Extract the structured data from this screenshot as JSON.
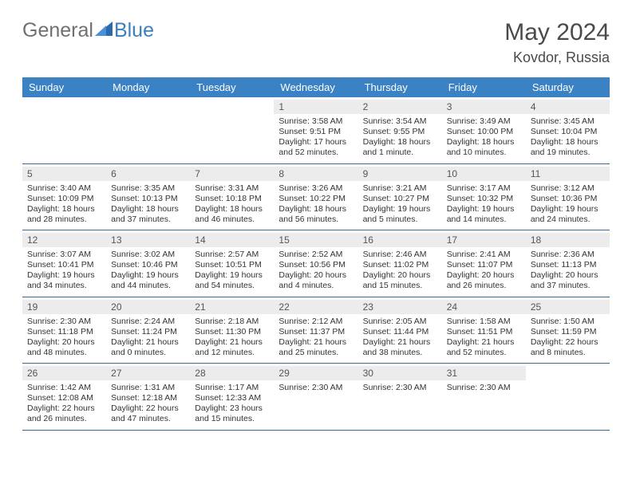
{
  "logo": {
    "text1": "General",
    "text2": "Blue"
  },
  "title": "May 2024",
  "location": "Kovdor, Russia",
  "accent_color": "#3a82c4",
  "daynum_bg": "#ececec",
  "border_color": "#3a6a9a",
  "text_color": "#333333",
  "header_text_color": "#ffffff",
  "page_bg": "#ffffff",
  "day_headers": [
    "Sunday",
    "Monday",
    "Tuesday",
    "Wednesday",
    "Thursday",
    "Friday",
    "Saturday"
  ],
  "weeks": [
    [
      null,
      null,
      null,
      {
        "n": "1",
        "sunrise": "3:58 AM",
        "sunset": "9:51 PM",
        "daylight": "17 hours and 52 minutes."
      },
      {
        "n": "2",
        "sunrise": "3:54 AM",
        "sunset": "9:55 PM",
        "daylight": "18 hours and 1 minute."
      },
      {
        "n": "3",
        "sunrise": "3:49 AM",
        "sunset": "10:00 PM",
        "daylight": "18 hours and 10 minutes."
      },
      {
        "n": "4",
        "sunrise": "3:45 AM",
        "sunset": "10:04 PM",
        "daylight": "18 hours and 19 minutes."
      }
    ],
    [
      {
        "n": "5",
        "sunrise": "3:40 AM",
        "sunset": "10:09 PM",
        "daylight": "18 hours and 28 minutes."
      },
      {
        "n": "6",
        "sunrise": "3:35 AM",
        "sunset": "10:13 PM",
        "daylight": "18 hours and 37 minutes."
      },
      {
        "n": "7",
        "sunrise": "3:31 AM",
        "sunset": "10:18 PM",
        "daylight": "18 hours and 46 minutes."
      },
      {
        "n": "8",
        "sunrise": "3:26 AM",
        "sunset": "10:22 PM",
        "daylight": "18 hours and 56 minutes."
      },
      {
        "n": "9",
        "sunrise": "3:21 AM",
        "sunset": "10:27 PM",
        "daylight": "19 hours and 5 minutes."
      },
      {
        "n": "10",
        "sunrise": "3:17 AM",
        "sunset": "10:32 PM",
        "daylight": "19 hours and 14 minutes."
      },
      {
        "n": "11",
        "sunrise": "3:12 AM",
        "sunset": "10:36 PM",
        "daylight": "19 hours and 24 minutes."
      }
    ],
    [
      {
        "n": "12",
        "sunrise": "3:07 AM",
        "sunset": "10:41 PM",
        "daylight": "19 hours and 34 minutes."
      },
      {
        "n": "13",
        "sunrise": "3:02 AM",
        "sunset": "10:46 PM",
        "daylight": "19 hours and 44 minutes."
      },
      {
        "n": "14",
        "sunrise": "2:57 AM",
        "sunset": "10:51 PM",
        "daylight": "19 hours and 54 minutes."
      },
      {
        "n": "15",
        "sunrise": "2:52 AM",
        "sunset": "10:56 PM",
        "daylight": "20 hours and 4 minutes."
      },
      {
        "n": "16",
        "sunrise": "2:46 AM",
        "sunset": "11:02 PM",
        "daylight": "20 hours and 15 minutes."
      },
      {
        "n": "17",
        "sunrise": "2:41 AM",
        "sunset": "11:07 PM",
        "daylight": "20 hours and 26 minutes."
      },
      {
        "n": "18",
        "sunrise": "2:36 AM",
        "sunset": "11:13 PM",
        "daylight": "20 hours and 37 minutes."
      }
    ],
    [
      {
        "n": "19",
        "sunrise": "2:30 AM",
        "sunset": "11:18 PM",
        "daylight": "20 hours and 48 minutes."
      },
      {
        "n": "20",
        "sunrise": "2:24 AM",
        "sunset": "11:24 PM",
        "daylight": "21 hours and 0 minutes."
      },
      {
        "n": "21",
        "sunrise": "2:18 AM",
        "sunset": "11:30 PM",
        "daylight": "21 hours and 12 minutes."
      },
      {
        "n": "22",
        "sunrise": "2:12 AM",
        "sunset": "11:37 PM",
        "daylight": "21 hours and 25 minutes."
      },
      {
        "n": "23",
        "sunrise": "2:05 AM",
        "sunset": "11:44 PM",
        "daylight": "21 hours and 38 minutes."
      },
      {
        "n": "24",
        "sunrise": "1:58 AM",
        "sunset": "11:51 PM",
        "daylight": "21 hours and 52 minutes."
      },
      {
        "n": "25",
        "sunrise": "1:50 AM",
        "sunset": "11:59 PM",
        "daylight": "22 hours and 8 minutes."
      }
    ],
    [
      {
        "n": "26",
        "sunrise": "1:42 AM",
        "sunset": "12:08 AM",
        "daylight": "22 hours and 26 minutes."
      },
      {
        "n": "27",
        "sunrise": "1:31 AM",
        "sunset": "12:18 AM",
        "daylight": "22 hours and 47 minutes."
      },
      {
        "n": "28",
        "sunrise": "1:17 AM",
        "sunset": "12:33 AM",
        "daylight": "23 hours and 15 minutes."
      },
      {
        "n": "29",
        "sunrise": "2:30 AM"
      },
      {
        "n": "30",
        "sunrise": "2:30 AM"
      },
      {
        "n": "31",
        "sunrise": "2:30 AM"
      },
      null
    ]
  ],
  "labels": {
    "sunrise": "Sunrise:",
    "sunset": "Sunset:",
    "daylight": "Daylight:"
  }
}
